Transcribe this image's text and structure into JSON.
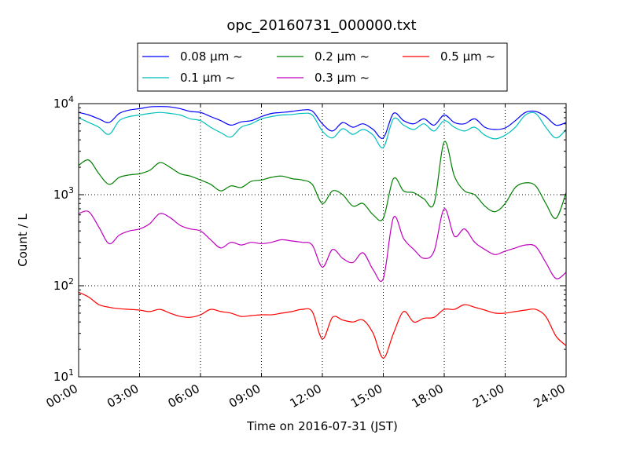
{
  "chart_data": {
    "type": "line",
    "title": "opc_20160731_000000.txt",
    "xlabel": "Time on 2016-07-31 (JST)",
    "ylabel": "Count / L",
    "x_unit": "hours",
    "xlim": [
      0,
      24
    ],
    "ylim": [
      10,
      10000
    ],
    "yscale": "log",
    "grid": true,
    "legend_position": "top-center",
    "x_ticks": [
      "00:00",
      "03:00",
      "06:00",
      "09:00",
      "12:00",
      "15:00",
      "18:00",
      "21:00",
      "24:00"
    ],
    "y_ticks": [
      {
        "base": "10",
        "exp": "1"
      },
      {
        "base": "10",
        "exp": "2"
      },
      {
        "base": "10",
        "exp": "3"
      },
      {
        "base": "10",
        "exp": "4"
      }
    ],
    "x": [
      0,
      0.5,
      1,
      1.5,
      2,
      2.5,
      3,
      3.5,
      4,
      4.5,
      5,
      5.5,
      6,
      6.5,
      7,
      7.5,
      8,
      8.5,
      9,
      9.5,
      10,
      10.5,
      11,
      11.5,
      12,
      12.5,
      13,
      13.5,
      14,
      14.5,
      15,
      15.5,
      16,
      16.5,
      17,
      17.5,
      18,
      18.5,
      19,
      19.5,
      20,
      20.5,
      21,
      21.5,
      22,
      22.5,
      23,
      23.5,
      24
    ],
    "series": [
      {
        "name": "0.08 μm ~",
        "color": "#0000ff",
        "values": [
          8000,
          7500,
          6800,
          6200,
          7800,
          8500,
          8800,
          9200,
          9300,
          9200,
          8800,
          8200,
          8000,
          7200,
          6500,
          5800,
          6300,
          6500,
          7200,
          7800,
          8000,
          8200,
          8500,
          8300,
          6000,
          5000,
          6200,
          5500,
          6000,
          5200,
          4200,
          7800,
          6500,
          6000,
          6800,
          5800,
          7500,
          6200,
          6000,
          6800,
          5500,
          5200,
          5400,
          6500,
          8000,
          8200,
          7200,
          5800,
          6200
        ]
      },
      {
        "name": "0.1 μm ~",
        "color": "#00bfbf",
        "values": [
          7000,
          6200,
          5500,
          4600,
          6500,
          7200,
          7500,
          7800,
          8000,
          7800,
          7500,
          6800,
          6500,
          5500,
          4800,
          4300,
          5500,
          6000,
          6800,
          7200,
          7500,
          7600,
          7800,
          7500,
          5000,
          4200,
          5300,
          4600,
          5200,
          4500,
          3300,
          6800,
          5800,
          5200,
          6000,
          5000,
          6500,
          5500,
          5000,
          5500,
          4500,
          4100,
          4500,
          5500,
          7500,
          7800,
          5500,
          4200,
          5200
        ]
      },
      {
        "name": "0.2 μm ~",
        "color": "#008000",
        "values": [
          2100,
          2400,
          1700,
          1300,
          1550,
          1650,
          1700,
          1850,
          2250,
          2000,
          1700,
          1600,
          1450,
          1300,
          1100,
          1250,
          1200,
          1400,
          1450,
          1550,
          1600,
          1500,
          1450,
          1300,
          800,
          1100,
          1000,
          750,
          800,
          600,
          550,
          1500,
          1100,
          1050,
          900,
          800,
          3800,
          1600,
          1100,
          1000,
          750,
          650,
          800,
          1200,
          1350,
          1250,
          800,
          550,
          1050
        ]
      },
      {
        "name": "0.3 μm ~",
        "color": "#bf00bf",
        "values": [
          620,
          650,
          440,
          290,
          360,
          400,
          420,
          480,
          620,
          560,
          460,
          420,
          400,
          320,
          260,
          300,
          280,
          300,
          290,
          300,
          320,
          310,
          300,
          280,
          160,
          250,
          200,
          180,
          230,
          150,
          120,
          560,
          330,
          250,
          200,
          240,
          700,
          350,
          420,
          300,
          250,
          220,
          240,
          260,
          280,
          270,
          180,
          120,
          140
        ]
      },
      {
        "name": "0.5 μm ~",
        "color": "#ff0000",
        "values": [
          85,
          75,
          62,
          58,
          56,
          55,
          54,
          52,
          55,
          50,
          46,
          45,
          48,
          55,
          52,
          50,
          46,
          47,
          48,
          48,
          50,
          52,
          55,
          52,
          26,
          45,
          42,
          40,
          42,
          30,
          16,
          30,
          52,
          40,
          44,
          45,
          55,
          55,
          62,
          58,
          54,
          50,
          50,
          52,
          54,
          55,
          46,
          28,
          22
        ]
      }
    ]
  }
}
